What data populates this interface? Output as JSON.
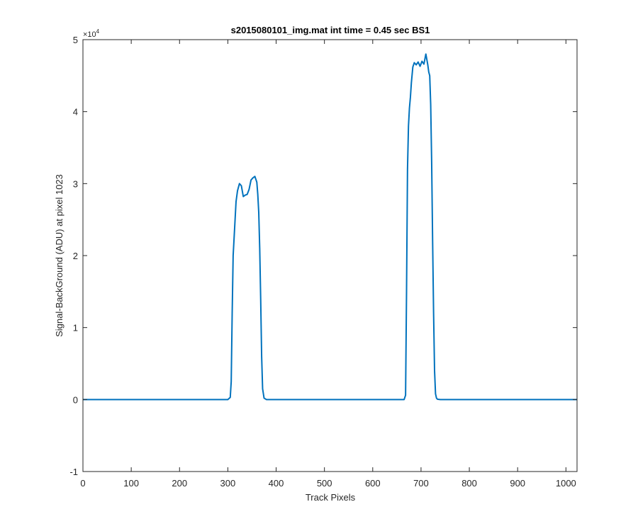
{
  "chart_data": {
    "type": "line",
    "title": "s2015080101_img.mat int time = 0.45 sec   BS1",
    "xlabel": "Track Pixels",
    "ylabel": "Signal-BackGround (ADU) at pixel 1023",
    "xlim": [
      0,
      1023
    ],
    "ylim": [
      -10000,
      50000
    ],
    "y_exponent_label": "×10",
    "y_exponent_power": "4",
    "x_ticks": [
      0,
      100,
      200,
      300,
      400,
      500,
      600,
      700,
      800,
      900,
      1000
    ],
    "x_tick_labels": [
      "0",
      "100",
      "200",
      "300",
      "400",
      "500",
      "600",
      "700",
      "800",
      "900",
      "1000"
    ],
    "y_ticks": [
      -10000,
      0,
      10000,
      20000,
      30000,
      40000,
      50000
    ],
    "y_tick_labels": [
      "-1",
      "0",
      "1",
      "2",
      "3",
      "4",
      "5"
    ],
    "grid": false,
    "box": true,
    "series": [
      {
        "color": "#0072BD",
        "x": [
          0,
          100,
          200,
          300,
          305,
          307,
          309,
          311,
          313,
          315,
          317,
          320,
          324,
          328,
          332,
          336,
          340,
          344,
          348,
          352,
          356,
          360,
          362,
          364,
          366,
          368,
          370,
          372,
          375,
          380,
          400,
          500,
          600,
          665,
          668,
          670,
          672,
          674,
          676,
          678,
          680,
          683,
          686,
          690,
          694,
          698,
          702,
          706,
          710,
          714,
          716,
          718,
          720,
          722,
          724,
          726,
          728,
          730,
          732,
          734,
          740,
          800,
          900,
          1023
        ],
        "y": [
          0,
          0,
          0,
          0,
          300,
          2500,
          12000,
          20000,
          22500,
          25000,
          27500,
          29000,
          30000,
          29700,
          28200,
          28400,
          28500,
          29200,
          30500,
          30800,
          31000,
          30200,
          28500,
          26000,
          21000,
          14000,
          6000,
          1500,
          200,
          0,
          0,
          0,
          0,
          0,
          600,
          15000,
          32000,
          38000,
          40500,
          42000,
          44000,
          46200,
          46800,
          46500,
          46900,
          46300,
          47000,
          46600,
          48000,
          46500,
          45500,
          45000,
          41000,
          33000,
          22000,
          12000,
          4000,
          800,
          200,
          50,
          0,
          0,
          0,
          0
        ]
      }
    ]
  }
}
